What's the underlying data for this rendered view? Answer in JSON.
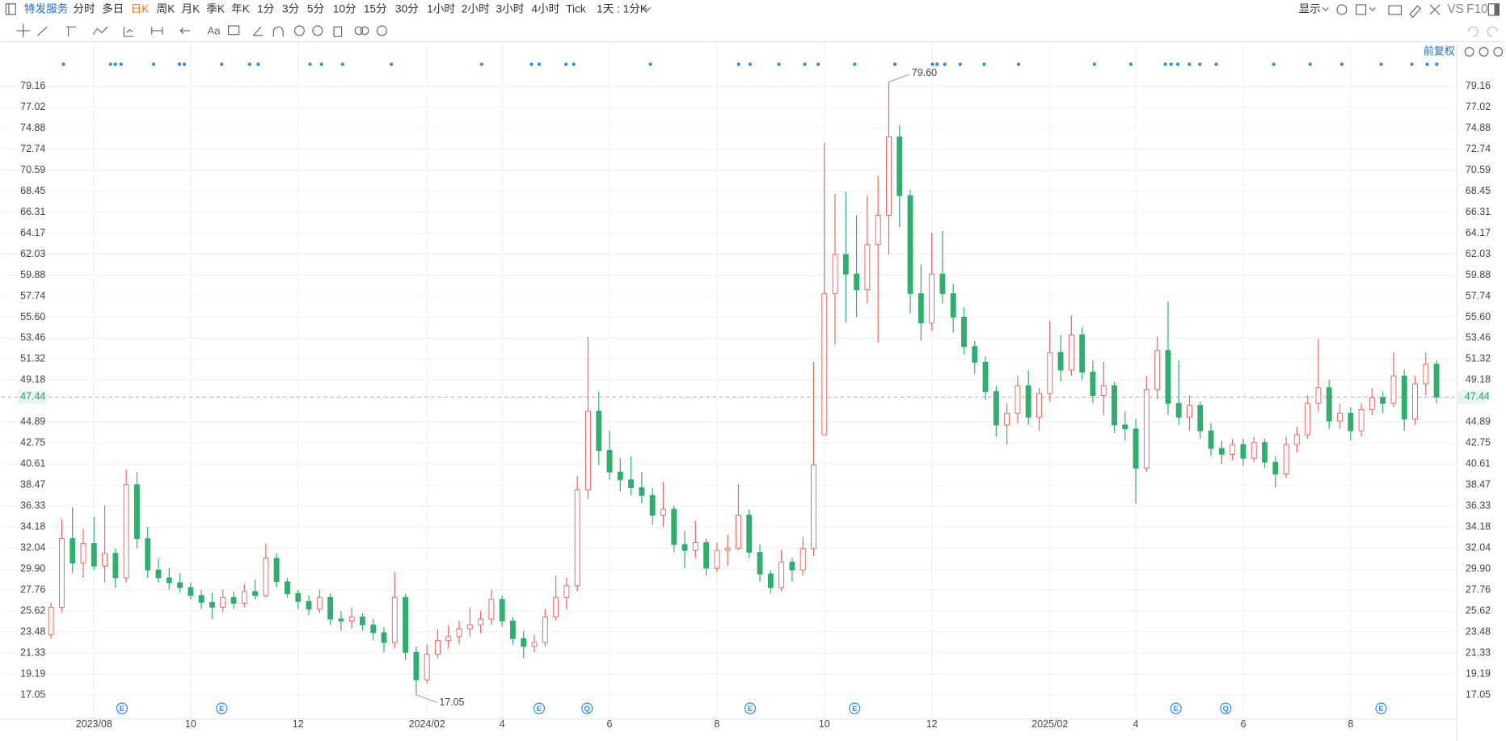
{
  "toolbar": {
    "stock": "特发服务",
    "tabs": [
      "分时",
      "多日",
      "日K",
      "周K",
      "月K",
      "季K",
      "年K",
      "1分",
      "3分",
      "5分",
      "10分",
      "15分",
      "30分",
      "1小时",
      "2小时",
      "3小时",
      "4小时",
      "Tick"
    ],
    "period": "1天 : 1分K",
    "display": "显示",
    "vs": "VS",
    "f10": "F10",
    "text_tool": "Aa",
    "adjust": "前复权"
  },
  "chart_data": {
    "type": "candlestick",
    "categories": [
      null,
      null,
      null,
      null,
      "2023/08",
      null,
      null,
      null,
      null,
      null,
      null,
      null,
      null,
      "10",
      null,
      null,
      null,
      null,
      null,
      null,
      null,
      null,
      null,
      "12",
      null,
      null,
      null,
      null,
      null,
      null,
      null,
      null,
      null,
      null,
      null,
      "2024/02",
      null,
      null,
      null,
      null,
      null,
      null,
      "4",
      null,
      null,
      null,
      null,
      null,
      null,
      null,
      null,
      null,
      "6",
      null,
      null,
      null,
      null,
      null,
      null,
      null,
      null,
      null,
      "8",
      null,
      null,
      null,
      null,
      null,
      null,
      null,
      null,
      null,
      "10",
      null,
      null,
      null,
      null,
      null,
      null,
      null,
      null,
      null,
      "12",
      null,
      null,
      null,
      null,
      null,
      null,
      null,
      null,
      null,
      null,
      "2025/02",
      null,
      null,
      null,
      null,
      null,
      null,
      null,
      "4",
      null,
      null,
      null,
      null,
      null,
      null,
      null,
      null,
      null,
      "6",
      null,
      null,
      null,
      null,
      null,
      null,
      null,
      null,
      null,
      "8",
      null,
      null,
      null,
      null,
      null,
      null,
      null,
      null
    ],
    "ohlc": [
      [
        23.2,
        26.5,
        22.8,
        26.0
      ],
      [
        26.0,
        35.0,
        25.5,
        33.0
      ],
      [
        33.0,
        36.2,
        29.5,
        30.5
      ],
      [
        30.5,
        34.0,
        29.0,
        32.5
      ],
      [
        32.5,
        35.2,
        29.8,
        30.2
      ],
      [
        30.2,
        36.4,
        28.5,
        31.5
      ],
      [
        31.5,
        32.0,
        28.0,
        29.0
      ],
      [
        29.0,
        40.0,
        28.5,
        38.5
      ],
      [
        38.5,
        39.8,
        32.0,
        33.0
      ],
      [
        33.0,
        34.2,
        29.0,
        29.8
      ],
      [
        29.8,
        31.0,
        28.5,
        29.0
      ],
      [
        29.0,
        30.0,
        27.8,
        28.5
      ],
      [
        28.5,
        29.5,
        27.5,
        28.0
      ],
      [
        28.0,
        28.5,
        26.8,
        27.2
      ],
      [
        27.2,
        27.8,
        25.8,
        26.5
      ],
      [
        26.5,
        27.5,
        24.8,
        26.0
      ],
      [
        26.0,
        27.8,
        25.5,
        27.0
      ],
      [
        27.0,
        27.6,
        25.8,
        26.4
      ],
      [
        26.4,
        28.4,
        26.0,
        27.6
      ],
      [
        27.6,
        28.8,
        26.8,
        27.2
      ],
      [
        27.2,
        32.5,
        27.0,
        31.0
      ],
      [
        31.0,
        31.5,
        28.0,
        28.6
      ],
      [
        28.6,
        29.0,
        27.0,
        27.4
      ],
      [
        27.4,
        27.8,
        25.8,
        26.6
      ],
      [
        26.6,
        27.2,
        25.2,
        25.8
      ],
      [
        25.8,
        27.8,
        25.4,
        27.0
      ],
      [
        27.0,
        27.4,
        24.2,
        24.8
      ],
      [
        24.8,
        25.6,
        23.6,
        24.6
      ],
      [
        24.6,
        26.0,
        23.8,
        25.0
      ],
      [
        25.0,
        25.4,
        23.6,
        24.2
      ],
      [
        24.2,
        24.8,
        22.6,
        23.4
      ],
      [
        23.4,
        24.0,
        21.4,
        22.4
      ],
      [
        22.4,
        29.6,
        21.8,
        27.0
      ],
      [
        27.0,
        27.4,
        20.6,
        21.4
      ],
      [
        21.4,
        22.0,
        17.05,
        18.6
      ],
      [
        18.6,
        22.2,
        18.2,
        21.2
      ],
      [
        21.2,
        23.8,
        20.8,
        22.6
      ],
      [
        22.6,
        24.2,
        21.8,
        23.0
      ],
      [
        23.0,
        24.6,
        22.2,
        23.8
      ],
      [
        23.8,
        26.0,
        23.0,
        24.2
      ],
      [
        24.2,
        25.6,
        23.4,
        24.8
      ],
      [
        24.8,
        27.8,
        24.2,
        26.8
      ],
      [
        26.8,
        27.2,
        24.0,
        24.6
      ],
      [
        24.6,
        25.0,
        22.2,
        22.8
      ],
      [
        22.8,
        23.6,
        20.8,
        22.0
      ],
      [
        22.0,
        23.2,
        21.4,
        22.4
      ],
      [
        22.4,
        25.8,
        22.0,
        25.0
      ],
      [
        25.0,
        29.2,
        24.6,
        27.0
      ],
      [
        27.0,
        29.0,
        25.8,
        28.2
      ],
      [
        28.2,
        39.4,
        27.6,
        38.0
      ],
      [
        38.0,
        53.6,
        37.0,
        46.0
      ],
      [
        46.0,
        48.0,
        40.5,
        42.0
      ],
      [
        42.0,
        44.0,
        39.0,
        39.8
      ],
      [
        39.8,
        41.2,
        37.8,
        39.0
      ],
      [
        39.0,
        41.4,
        37.4,
        38.2
      ],
      [
        38.2,
        39.8,
        36.6,
        37.4
      ],
      [
        37.4,
        38.2,
        34.4,
        35.4
      ],
      [
        35.4,
        38.8,
        34.2,
        36.0
      ],
      [
        36.0,
        36.4,
        31.6,
        32.4
      ],
      [
        32.4,
        33.8,
        30.0,
        31.8
      ],
      [
        31.8,
        34.8,
        31.0,
        32.6
      ],
      [
        32.6,
        33.0,
        29.2,
        30.0
      ],
      [
        30.0,
        32.6,
        29.6,
        31.8
      ],
      [
        31.8,
        33.4,
        30.2,
        32.0
      ],
      [
        32.0,
        38.6,
        31.8,
        35.4
      ],
      [
        35.4,
        36.0,
        31.0,
        31.6
      ],
      [
        31.6,
        32.4,
        28.6,
        29.4
      ],
      [
        29.4,
        29.8,
        27.4,
        28.0
      ],
      [
        28.0,
        31.8,
        27.6,
        30.6
      ],
      [
        30.6,
        31.0,
        28.6,
        29.8
      ],
      [
        29.8,
        33.2,
        29.2,
        32.0
      ],
      [
        32.0,
        51.0,
        31.2,
        40.5
      ],
      [
        43.6,
        73.4,
        43.6,
        58.0
      ],
      [
        58.0,
        68.2,
        52.8,
        62.0
      ],
      [
        62.0,
        68.4,
        55.0,
        60.0
      ],
      [
        60.0,
        66.0,
        55.6,
        58.4
      ],
      [
        58.4,
        68.0,
        57.0,
        63.0
      ],
      [
        63.0,
        70.0,
        53.0,
        66.0
      ],
      [
        66.0,
        79.6,
        62.0,
        74.0
      ],
      [
        74.0,
        75.2,
        64.8,
        68.0
      ],
      [
        68.0,
        68.6,
        56.0,
        58.0
      ],
      [
        58.0,
        61.0,
        53.2,
        55.0
      ],
      [
        55.0,
        64.2,
        54.2,
        60.0
      ],
      [
        60.0,
        64.4,
        57.0,
        58.0
      ],
      [
        58.0,
        59.0,
        54.0,
        55.6
      ],
      [
        55.6,
        56.6,
        51.8,
        52.6
      ],
      [
        52.6,
        53.2,
        49.8,
        51.0
      ],
      [
        51.0,
        51.6,
        47.2,
        48.0
      ],
      [
        48.0,
        48.6,
        43.4,
        44.6
      ],
      [
        44.6,
        46.8,
        42.6,
        45.8
      ],
      [
        45.8,
        49.6,
        44.8,
        48.6
      ],
      [
        48.6,
        50.2,
        44.6,
        45.4
      ],
      [
        45.4,
        48.4,
        44.0,
        47.8
      ],
      [
        47.8,
        55.2,
        47.0,
        52.0
      ],
      [
        52.0,
        53.8,
        49.0,
        50.2
      ],
      [
        50.2,
        55.8,
        49.6,
        53.8
      ],
      [
        53.8,
        54.6,
        49.2,
        50.0
      ],
      [
        50.0,
        51.2,
        46.8,
        47.6
      ],
      [
        47.6,
        51.0,
        45.6,
        48.6
      ],
      [
        48.6,
        49.0,
        43.8,
        44.6
      ],
      [
        44.6,
        46.0,
        43.0,
        44.2
      ],
      [
        44.2,
        45.2,
        36.6,
        40.2
      ],
      [
        40.2,
        49.6,
        39.8,
        48.2
      ],
      [
        48.2,
        53.6,
        47.2,
        52.2
      ],
      [
        52.2,
        57.2,
        45.6,
        46.8
      ],
      [
        46.8,
        51.2,
        44.6,
        45.4
      ],
      [
        45.4,
        47.6,
        44.0,
        46.6
      ],
      [
        46.6,
        47.0,
        43.2,
        44.0
      ],
      [
        44.0,
        44.8,
        41.4,
        42.2
      ],
      [
        42.2,
        43.0,
        40.6,
        41.6
      ],
      [
        41.6,
        43.2,
        41.0,
        42.6
      ],
      [
        42.6,
        43.2,
        40.4,
        41.2
      ],
      [
        41.2,
        43.4,
        40.8,
        42.8
      ],
      [
        42.8,
        43.2,
        40.2,
        40.8
      ],
      [
        40.8,
        41.4,
        38.2,
        39.6
      ],
      [
        39.6,
        43.4,
        39.2,
        42.6
      ],
      [
        42.6,
        44.4,
        41.8,
        43.6
      ],
      [
        43.6,
        47.6,
        43.2,
        46.8
      ],
      [
        46.8,
        53.4,
        46.0,
        48.4
      ],
      [
        48.4,
        49.2,
        44.2,
        45.0
      ],
      [
        45.0,
        46.8,
        44.2,
        45.8
      ],
      [
        45.8,
        46.4,
        43.0,
        44.0
      ],
      [
        44.0,
        46.8,
        43.4,
        46.2
      ],
      [
        46.2,
        48.4,
        45.6,
        47.4
      ],
      [
        47.4,
        48.0,
        45.8,
        46.8
      ],
      [
        46.8,
        52.0,
        46.4,
        49.6
      ],
      [
        49.6,
        50.2,
        44.0,
        45.2
      ],
      [
        45.2,
        49.6,
        44.6,
        48.8
      ],
      [
        48.8,
        52.0,
        47.6,
        50.8
      ],
      [
        50.8,
        51.2,
        46.8,
        47.44
      ]
    ],
    "up_color": "#f0625c",
    "down_color": "#2fae6e",
    "ylim": [
      14.6,
      83.66
    ],
    "yticks": [
      17.05,
      19.19,
      21.33,
      23.48,
      25.62,
      27.76,
      {
        "value": 29.9,
        "label": "29.90"
      },
      32.04,
      34.18,
      36.33,
      38.47,
      40.61,
      42.75,
      44.89,
      49.18,
      51.32,
      53.46,
      {
        "value": 55.6,
        "label": "55.60"
      },
      57.74,
      59.88,
      62.03,
      64.17,
      66.31,
      68.45,
      70.59,
      72.74,
      74.88,
      77.02,
      79.16
    ],
    "grid": true,
    "last_price": {
      "value": 47.44,
      "label": "47.44",
      "color": "#f6a77a"
    },
    "high_label": "79.60",
    "low_label": "17.05",
    "events": [
      "E",
      "E",
      "E",
      "Q",
      "E",
      "E",
      "E",
      "Q",
      "E"
    ],
    "event_color": "#2a8ae6"
  }
}
